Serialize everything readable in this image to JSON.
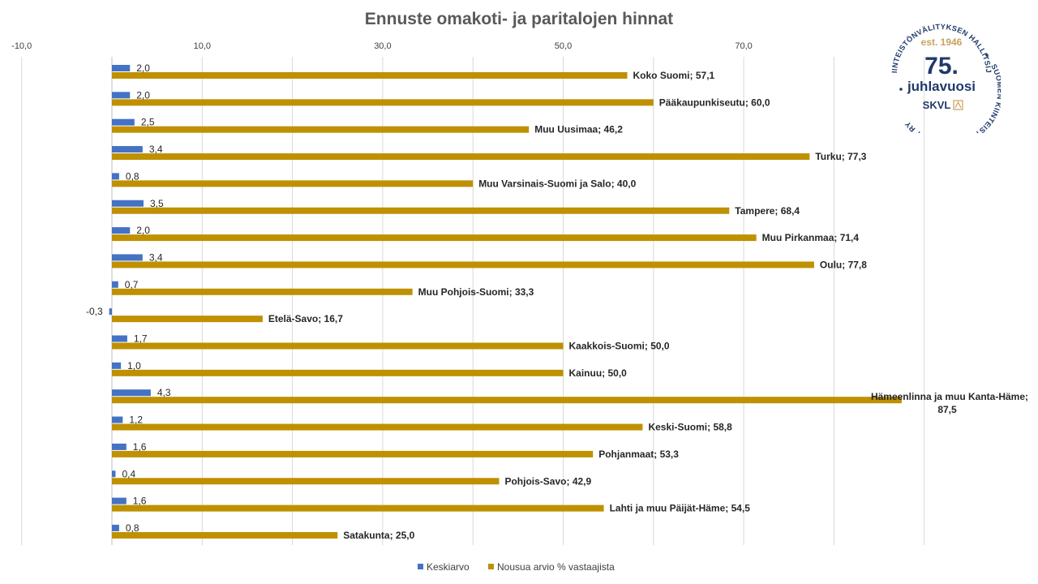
{
  "chart_data": {
    "type": "bar",
    "orientation": "horizontal",
    "title": "Ennuste omakoti- ja paritalojen hinnat",
    "x_ticks": [
      "-10,0",
      "10,0",
      "30,0",
      "50,0",
      "70,0"
    ],
    "x_tick_values": [
      -10,
      10,
      30,
      50,
      70
    ],
    "xlim": [
      -10,
      90
    ],
    "grid": true,
    "legend_position": "bottom",
    "categories": [
      "Koko Suomi",
      "Pääkaupunkiseutu",
      "Muu Uusimaa",
      "Turku",
      "Muu Varsinais-Suomi ja Salo",
      "Tampere",
      "Muu Pirkanmaa",
      "Oulu",
      "Muu Pohjois-Suomi",
      "Etelä-Savo",
      "Kaakkois-Suomi",
      "Kainuu",
      "Hämeenlinna ja muu Kanta-Häme",
      "Keski-Suomi",
      "Pohjanmaat",
      "Pohjois-Savo",
      "Lahti ja muu Päijät-Häme",
      "Satakunta"
    ],
    "series": [
      {
        "name": "Keskiarvo",
        "color": "#4472c4",
        "values": [
          2.0,
          2.0,
          2.5,
          3.4,
          0.8,
          3.5,
          2.0,
          3.4,
          0.7,
          -0.3,
          1.7,
          1.0,
          4.3,
          1.2,
          1.6,
          0.4,
          1.6,
          0.8
        ],
        "labels": [
          "2,0",
          "2,0",
          "2,5",
          "3,4",
          "0,8",
          "3,5",
          "2,0",
          "3,4",
          "0,7",
          "-0,3",
          "1,7",
          "1,0",
          "4,3",
          "1,2",
          "1,6",
          "0,4",
          "1,6",
          "0,8"
        ]
      },
      {
        "name": "Nousua arvio % vastaajista",
        "color": "#bf9000",
        "values": [
          57.1,
          60.0,
          46.2,
          77.3,
          40.0,
          68.4,
          71.4,
          77.8,
          33.3,
          16.7,
          50.0,
          50.0,
          87.5,
          58.8,
          53.3,
          42.9,
          54.5,
          25.0
        ],
        "labels": [
          "Koko Suomi; 57,1",
          "Pääkaupunkiseutu; 60,0",
          "Muu Uusimaa; 46,2",
          "Turku; 77,3",
          "Muu Varsinais-Suomi ja Salo; 40,0",
          "Tampere; 68,4",
          "Muu Pirkanmaa;  71,4",
          "Oulu; 77,8",
          "Muu Pohjois-Suomi; 33,3",
          "Etelä-Savo; 16,7",
          "Kaakkois-Suomi; 50,0",
          "Kainuu; 50,0",
          "Hämeenlinna ja muu Kanta-Häme;",
          "Keski-Suomi; 58,8",
          "Pohjanmaat; 53,3",
          "Pohjois-Savo; 42,9",
          "Lahti ja muu Päijät-Häme;  54,5",
          "Satakunta; 25,0"
        ],
        "label_second_lines": [
          "",
          "",
          "",
          "",
          "",
          "",
          "",
          "",
          "",
          "",
          "",
          "",
          "87,5",
          "",
          "",
          "",
          "",
          ""
        ]
      }
    ]
  },
  "badge": {
    "ring_top": "KIINTEISTÖNVÄLITYKSEN HALLITSIJA",
    "ring_right": "SUOMEN KIINTEISTÖNVÄLITTÄJÄT RY",
    "est": "est. 1946",
    "number": "75.",
    "word": "juhlavuosi",
    "brand": "SKVL",
    "color": "#1f3a6b",
    "accent": "#c9a25c"
  }
}
